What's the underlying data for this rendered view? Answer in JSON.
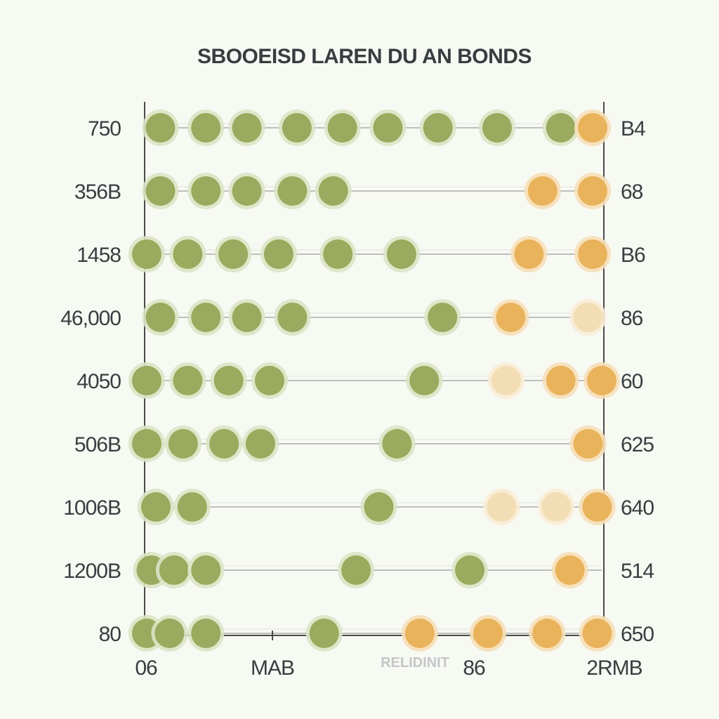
{
  "chart_data": {
    "type": "scatter",
    "title": "SBOOEISD LAREN DU AN BONDS",
    "left_labels": [
      "750",
      "356B",
      "1458",
      "46,000",
      "4050",
      "506B",
      "1006B",
      "1200B",
      "80"
    ],
    "right_labels": [
      "B4",
      "68",
      "B6",
      "86",
      "60",
      "625",
      "640",
      "514",
      "650"
    ],
    "x_tick_labels": [
      "06",
      "MAB",
      "86",
      "2RMB"
    ],
    "x_sub_label": "RELIDINIT",
    "grid": "horizontal",
    "colors": {
      "primary": "#9aaa5e",
      "secondary": "#e9b35c",
      "light": "#f2ddb5",
      "axis": "#4a4a4a",
      "line": "#bdbfbd"
    },
    "x_range": [
      0,
      100
    ],
    "series": [
      {
        "values": [
          [
            3,
            13,
            22,
            33,
            43,
            53,
            64,
            77,
            91
          ],
          [
            3,
            13,
            22,
            32,
            41
          ],
          [
            0,
            9,
            19,
            29,
            42,
            56
          ],
          [
            3,
            13,
            22,
            32,
            65
          ],
          [
            0,
            9,
            18,
            27,
            61
          ],
          [
            0,
            8,
            17,
            25,
            55
          ],
          [
            2,
            10,
            51
          ],
          [
            1,
            6,
            13,
            46,
            71
          ],
          [
            0,
            5,
            13,
            39
          ]
        ]
      },
      {
        "values": [
          [
            98
          ],
          [
            87,
            98
          ],
          [
            84,
            98
          ],
          [
            80
          ],
          [
            91,
            100
          ],
          [
            97
          ],
          [
            99
          ],
          [
            93
          ],
          [
            60,
            75,
            88,
            99
          ]
        ]
      },
      {
        "values": [
          [],
          [],
          [],
          [
            97
          ],
          [
            79
          ],
          [],
          [
            78,
            90
          ],
          [],
          []
        ]
      }
    ]
  }
}
